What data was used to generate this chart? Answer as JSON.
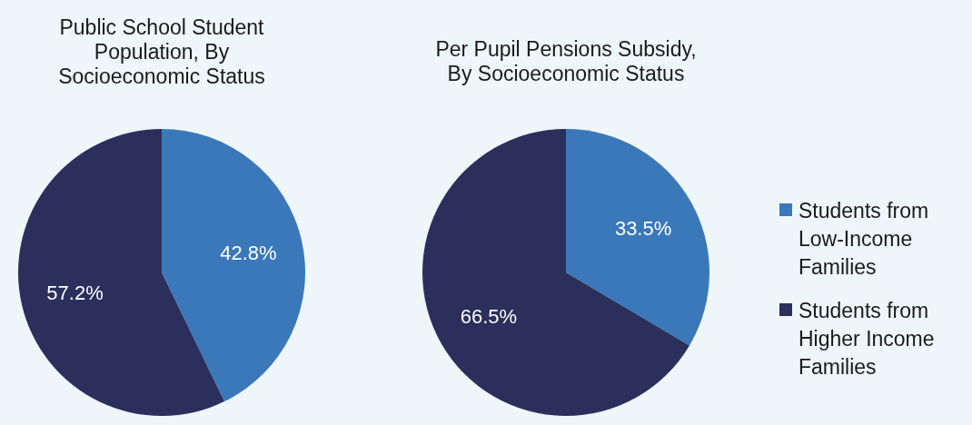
{
  "chart_data": [
    {
      "type": "pie",
      "title": "Public School Student Population, By Socioeconomic Status",
      "categories": [
        "Students from Low-Income Families",
        "Students from Higher Income Families"
      ],
      "values": [
        42.8,
        57.2
      ],
      "colors": [
        "#3a78b9",
        "#2b2f5c"
      ],
      "value_labels": [
        "42.8%",
        "57.2%"
      ],
      "legend": "right"
    },
    {
      "type": "pie",
      "title": "Per Pupil Pensions Subsidy, By Socioeconomic Status",
      "categories": [
        null,
        null
      ],
      "values": [
        33.5,
        66.5
      ],
      "colors": [
        "#3a78b9",
        "#2b2f5c"
      ],
      "value_labels": [
        "33.5%",
        "66.5%"
      ],
      "legend": false
    }
  ]
}
